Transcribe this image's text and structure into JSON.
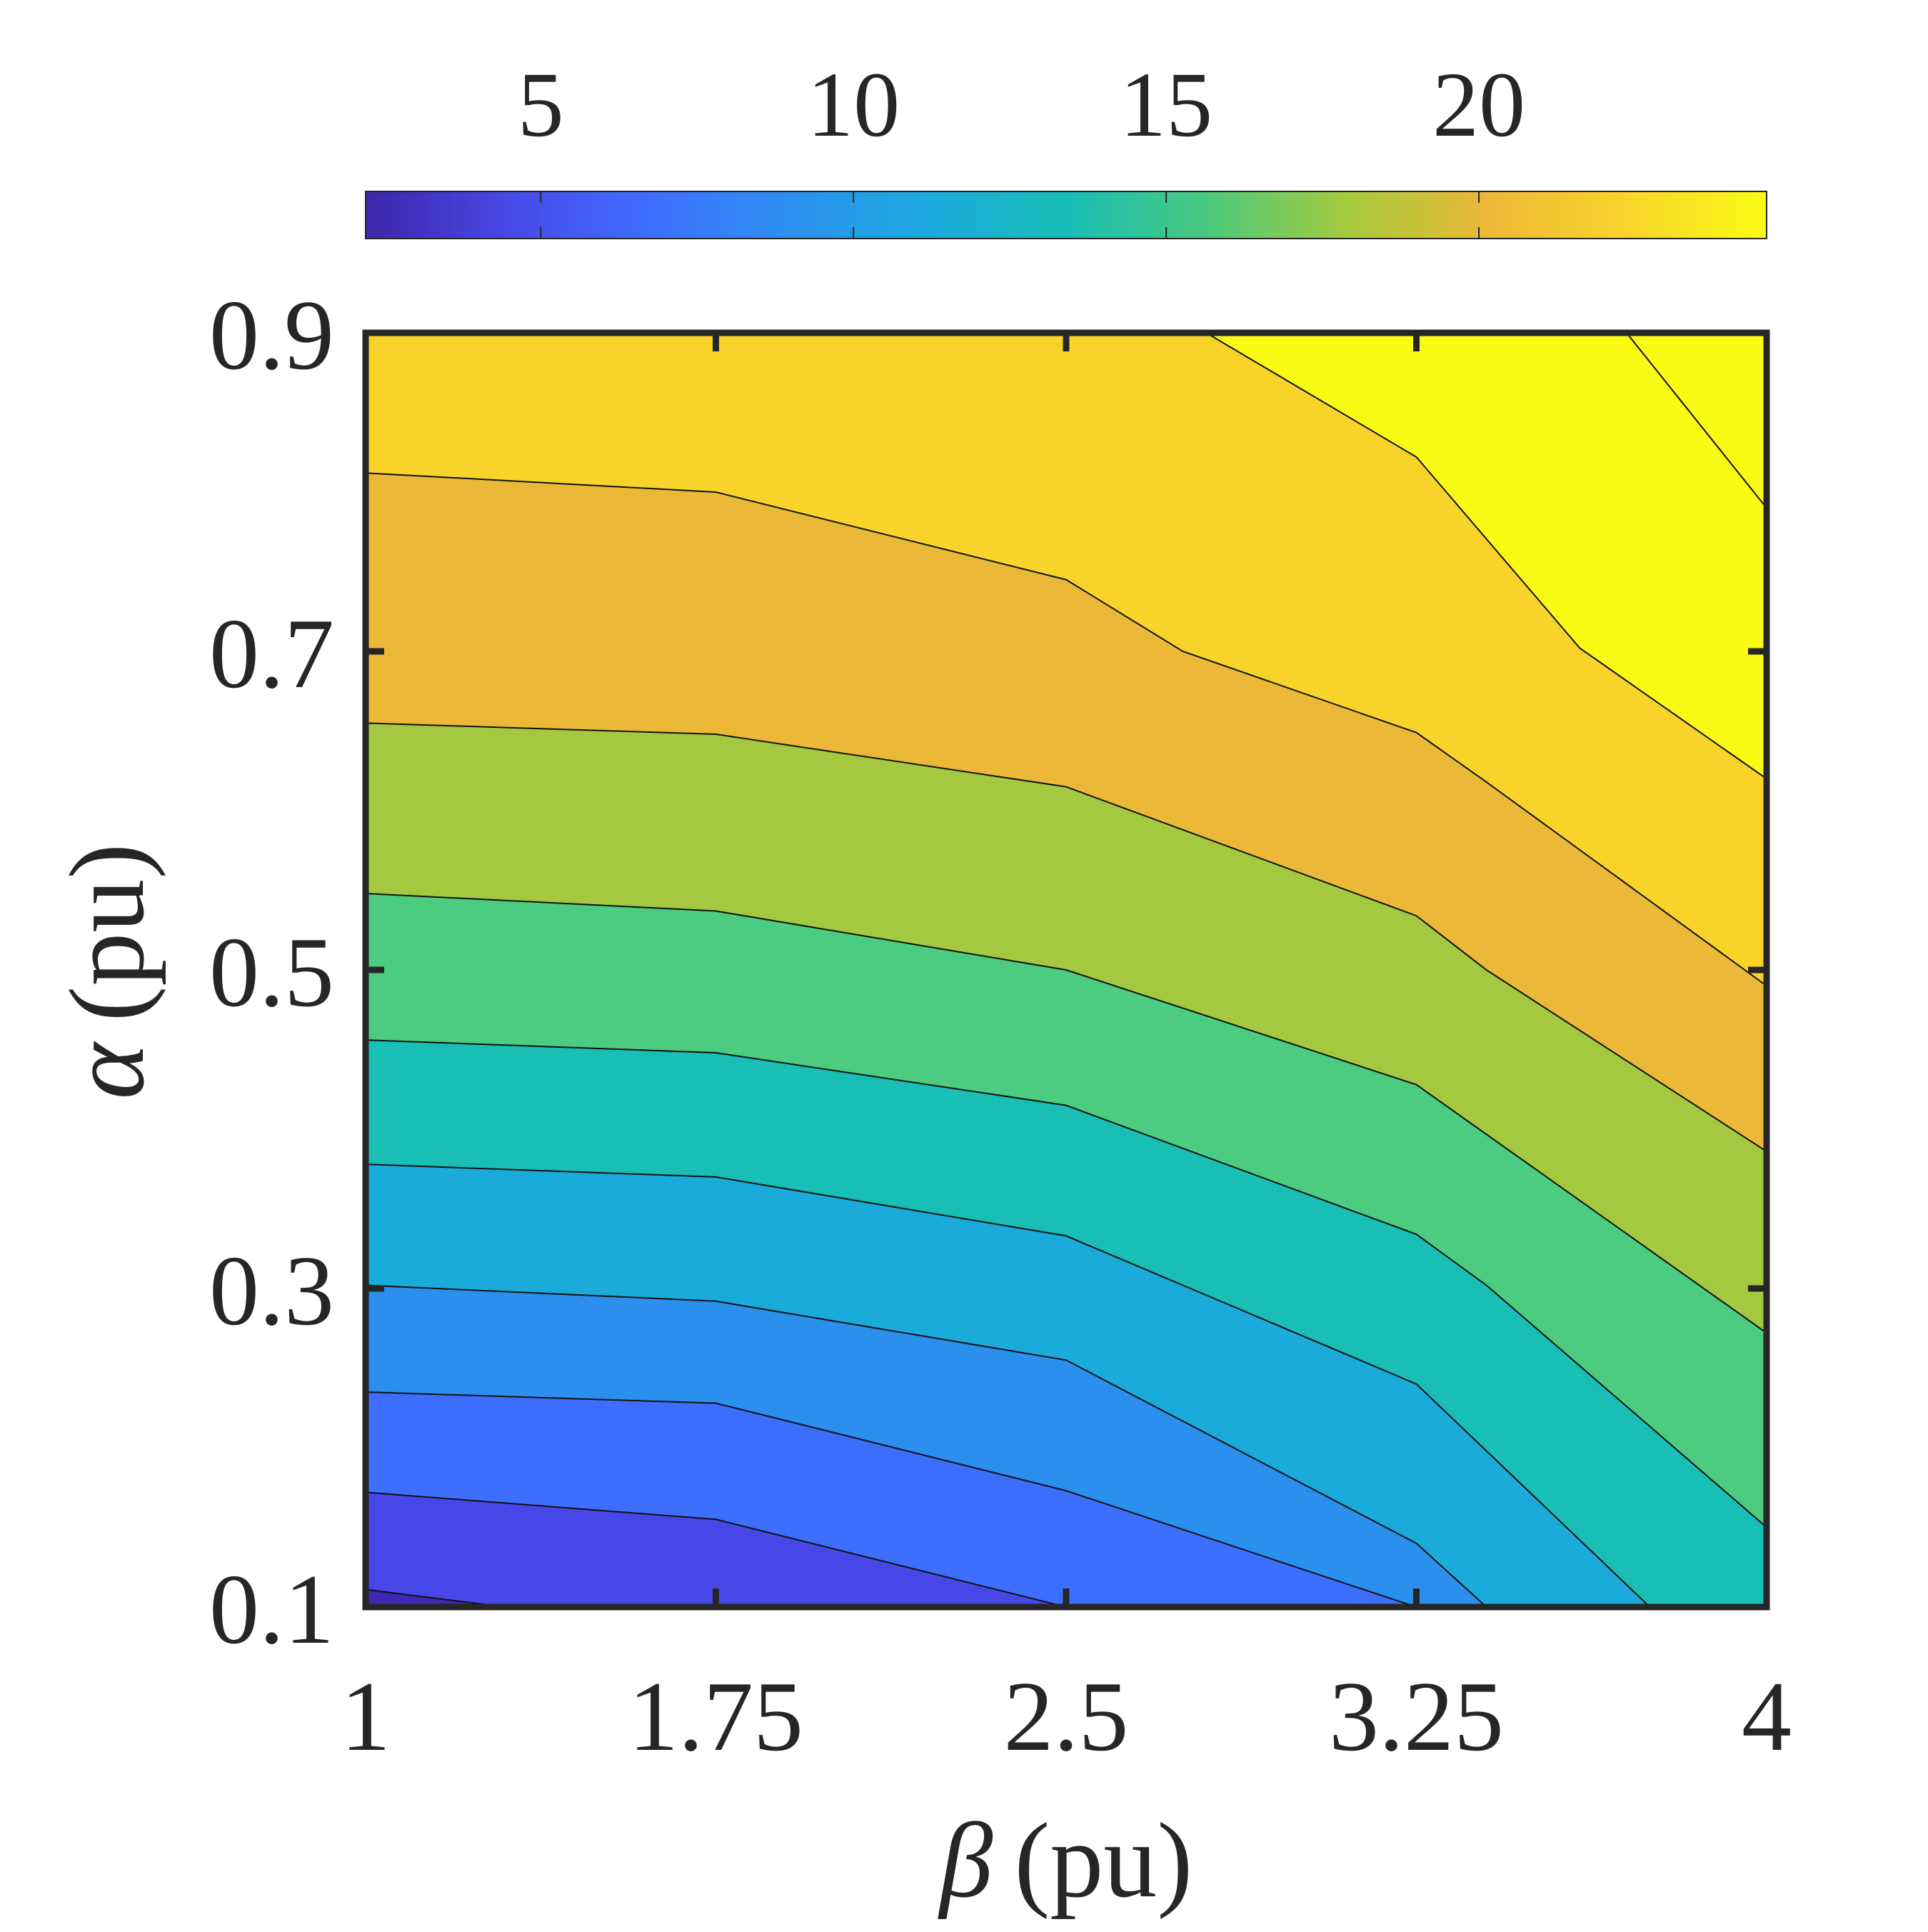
{
  "chart_data": {
    "type": "contour",
    "xlabel": {
      "symbol": "β",
      "unit": "(pu)"
    },
    "ylabel": {
      "symbol": "α",
      "unit": "(pu)"
    },
    "xlim": [
      1,
      4
    ],
    "ylim": [
      0.1,
      0.9
    ],
    "xticks": [
      1,
      1.75,
      2.5,
      3.25,
      4
    ],
    "xtick_labels": [
      "1",
      "1.75",
      "2.5",
      "3.25",
      "4"
    ],
    "yticks": [
      0.1,
      0.3,
      0.5,
      0.7,
      0.9
    ],
    "ytick_labels": [
      "0.1",
      "0.3",
      "0.5",
      "0.7",
      "0.9"
    ],
    "colorbar": {
      "location": "top",
      "range": [
        2.2,
        24.6
      ],
      "ticks": [
        5,
        10,
        15,
        20
      ],
      "tick_labels": [
        "5",
        "10",
        "15",
        "20"
      ],
      "colormap": [
        "#3e26a8",
        "#4748e6",
        "#3f6dff",
        "#2d8ff0",
        "#1caadf",
        "#18bdb6",
        "#4ac97e",
        "#a4ca3e",
        "#ecb837",
        "#f9d42b",
        "#f9fb15"
      ]
    },
    "levels": [
      4,
      6,
      8,
      10,
      12,
      14,
      16,
      18,
      20,
      22,
      24
    ],
    "band_colors": [
      "#3e27b3",
      "#4747e7",
      "#3e6efd",
      "#2b8fee",
      "#1babdb",
      "#19bfb4",
      "#4bcc80",
      "#a4c940",
      "#ecb837",
      "#f8d42b",
      "#f9fb15"
    ],
    "contour_lines": [
      {
        "level": 4,
        "points": [
          [
            1.0,
            0.111
          ],
          [
            1.3,
            0.1
          ]
        ]
      },
      {
        "level": 6,
        "points": [
          [
            1.0,
            0.172
          ],
          [
            1.75,
            0.155
          ],
          [
            2.5,
            0.1
          ],
          [
            2.5,
            0.1
          ]
        ]
      },
      {
        "level": 8,
        "points": [
          [
            1.0,
            0.235
          ],
          [
            1.75,
            0.228
          ],
          [
            2.5,
            0.173
          ],
          [
            3.25,
            0.1
          ]
        ]
      },
      {
        "level": 10,
        "points": [
          [
            1.0,
            0.302
          ],
          [
            1.75,
            0.292
          ],
          [
            2.5,
            0.255
          ],
          [
            3.25,
            0.14
          ],
          [
            3.4,
            0.1
          ]
        ]
      },
      {
        "level": 12,
        "points": [
          [
            1.0,
            0.378
          ],
          [
            1.75,
            0.37
          ],
          [
            2.5,
            0.333
          ],
          [
            2.75,
            0.302
          ],
          [
            3.25,
            0.24
          ],
          [
            3.75,
            0.1
          ]
        ]
      },
      {
        "level": 14,
        "points": [
          [
            1.0,
            0.456
          ],
          [
            1.75,
            0.448
          ],
          [
            2.5,
            0.415
          ],
          [
            3.25,
            0.334
          ],
          [
            3.4,
            0.302
          ],
          [
            4.0,
            0.15
          ]
        ]
      },
      {
        "level": 16,
        "points": [
          [
            1.0,
            0.548
          ],
          [
            1.75,
            0.537
          ],
          [
            2.5,
            0.5
          ],
          [
            3.25,
            0.428
          ],
          [
            4.0,
            0.272
          ]
        ]
      },
      {
        "level": 18,
        "points": [
          [
            1.0,
            0.655
          ],
          [
            1.75,
            0.648
          ],
          [
            2.5,
            0.615
          ],
          [
            3.25,
            0.534
          ],
          [
            3.4,
            0.5
          ],
          [
            4.0,
            0.386
          ]
        ]
      },
      {
        "level": 20,
        "points": [
          [
            1.0,
            0.812
          ],
          [
            1.75,
            0.8
          ],
          [
            2.5,
            0.745
          ],
          [
            2.75,
            0.7
          ],
          [
            3.25,
            0.649
          ],
          [
            3.4,
            0.618
          ],
          [
            4.0,
            0.49
          ]
        ]
      },
      {
        "level": 22,
        "points": [
          [
            2.8,
            0.9
          ],
          [
            3.25,
            0.822
          ],
          [
            3.6,
            0.702
          ],
          [
            4.0,
            0.62
          ]
        ]
      },
      {
        "level": 24,
        "points": [
          [
            3.7,
            0.9
          ],
          [
            4.0,
            0.79
          ]
        ]
      }
    ]
  }
}
